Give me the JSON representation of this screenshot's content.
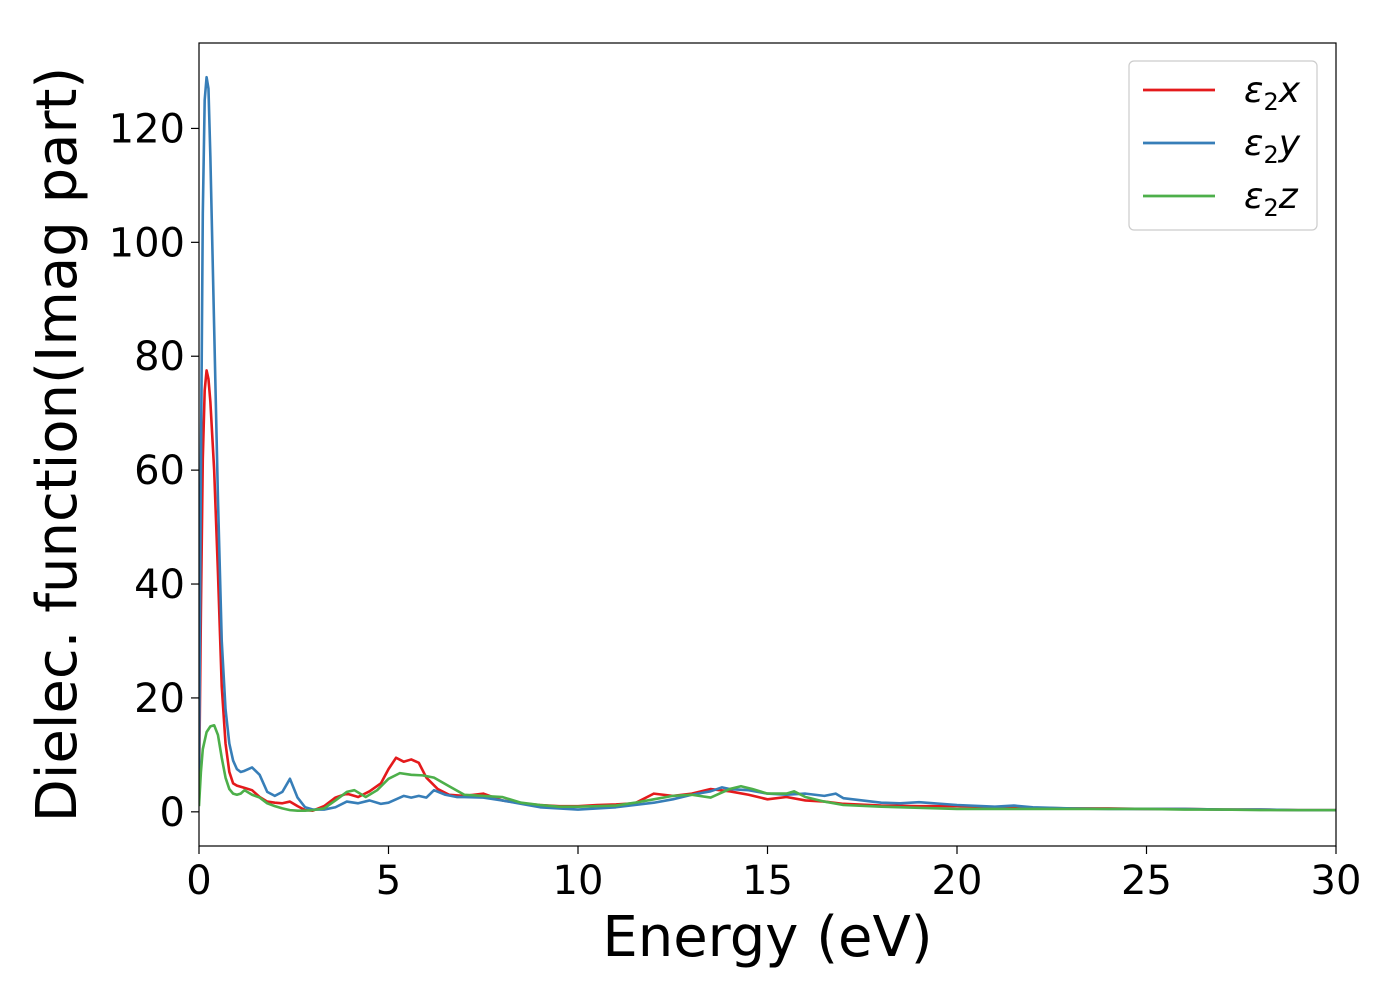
{
  "chart_data": {
    "type": "line",
    "title": "",
    "xlabel": "Energy (eV)",
    "ylabel": "Dielec. function(Imag part)",
    "xlim": [
      0,
      30
    ],
    "ylim": [
      -6,
      135
    ],
    "xticks": [
      0,
      5,
      10,
      15,
      20,
      25,
      30
    ],
    "yticks": [
      0,
      20,
      40,
      60,
      80,
      100,
      120
    ],
    "grid": false,
    "legend_position": "top-right",
    "series": [
      {
        "name": "ε2x",
        "legend_base": "ε",
        "legend_sub": "2",
        "legend_var": "x",
        "color": "#e41a1c",
        "x": [
          0,
          0.05,
          0.1,
          0.15,
          0.2,
          0.25,
          0.3,
          0.4,
          0.5,
          0.6,
          0.7,
          0.8,
          0.9,
          1.0,
          1.1,
          1.2,
          1.4,
          1.6,
          1.8,
          2.0,
          2.2,
          2.4,
          2.6,
          2.8,
          3.0,
          3.3,
          3.6,
          3.9,
          4.2,
          4.5,
          4.8,
          5.0,
          5.2,
          5.4,
          5.6,
          5.8,
          6.0,
          6.3,
          6.6,
          7.0,
          7.5,
          8.0,
          8.5,
          9.0,
          9.5,
          10.0,
          10.5,
          11.0,
          11.5,
          12.0,
          12.5,
          13.0,
          13.5,
          14.0,
          14.5,
          15.0,
          15.5,
          16.0,
          16.5,
          17.0,
          18.0,
          19.0,
          20.0,
          21.0,
          22.0,
          23.0,
          24.0,
          25.0,
          26.0,
          27.0,
          28.0,
          29.0,
          30.0
        ],
        "y": [
          3,
          35,
          62,
          74,
          77.5,
          76,
          72,
          60,
          42,
          22,
          12,
          7,
          5,
          4.6,
          4.4,
          4.2,
          3.8,
          2.6,
          1.8,
          1.6,
          1.5,
          1.8,
          1.0,
          0.3,
          0.2,
          1.0,
          2.5,
          3.2,
          2.6,
          3.6,
          5.0,
          7.5,
          9.5,
          8.8,
          9.2,
          8.6,
          6.0,
          4.0,
          3.0,
          2.8,
          3.2,
          2.0,
          1.5,
          1.2,
          1.0,
          1.0,
          1.2,
          1.3,
          1.5,
          3.2,
          2.8,
          3.2,
          4.0,
          3.6,
          3.0,
          2.2,
          2.6,
          2.0,
          1.8,
          1.4,
          1.1,
          1.0,
          1.0,
          0.8,
          0.7,
          0.6,
          0.6,
          0.5,
          0.5,
          0.4,
          0.4,
          0.3,
          0.3
        ]
      },
      {
        "name": "ε2y",
        "legend_base": "ε",
        "legend_sub": "2",
        "legend_var": "y",
        "color": "#377eb8",
        "x": [
          0,
          0.05,
          0.1,
          0.15,
          0.2,
          0.25,
          0.3,
          0.4,
          0.5,
          0.6,
          0.7,
          0.8,
          0.9,
          1.0,
          1.1,
          1.2,
          1.4,
          1.6,
          1.8,
          2.0,
          2.2,
          2.4,
          2.6,
          2.8,
          3.0,
          3.3,
          3.6,
          3.9,
          4.2,
          4.5,
          4.8,
          5.0,
          5.2,
          5.4,
          5.6,
          5.8,
          6.0,
          6.2,
          6.5,
          6.8,
          7.0,
          7.5,
          8.0,
          8.5,
          9.0,
          9.5,
          10.0,
          10.5,
          11.0,
          11.5,
          12.0,
          12.5,
          13.0,
          13.5,
          13.8,
          14.0,
          14.5,
          15.0,
          15.5,
          16.0,
          16.5,
          16.8,
          17.0,
          17.5,
          18.0,
          18.5,
          19.0,
          20.0,
          21.0,
          21.5,
          22.0,
          23.0,
          24.0,
          25.0,
          26.0,
          27.0,
          28.0,
          29.0,
          30.0
        ],
        "y": [
          5,
          60,
          105,
          125,
          129,
          127,
          115,
          85,
          55,
          30,
          18,
          12,
          9,
          7.5,
          7.0,
          7.2,
          7.8,
          6.5,
          3.5,
          2.8,
          3.5,
          5.8,
          2.5,
          0.8,
          0.4,
          0.4,
          0.8,
          1.8,
          1.5,
          2.0,
          1.4,
          1.6,
          2.2,
          2.8,
          2.5,
          2.8,
          2.5,
          3.8,
          3.0,
          2.6,
          2.6,
          2.5,
          2.0,
          1.4,
          0.8,
          0.6,
          0.4,
          0.6,
          0.8,
          1.2,
          1.6,
          2.2,
          3.0,
          3.6,
          4.3,
          4.0,
          3.8,
          3.2,
          3.0,
          3.2,
          2.8,
          3.2,
          2.4,
          2.0,
          1.6,
          1.5,
          1.7,
          1.2,
          0.9,
          1.1,
          0.8,
          0.6,
          0.5,
          0.5,
          0.5,
          0.4,
          0.4,
          0.3,
          0.3
        ]
      },
      {
        "name": "ε2z",
        "legend_base": "ε",
        "legend_sub": "2",
        "legend_var": "z",
        "color": "#4daf4a",
        "x": [
          0,
          0.05,
          0.1,
          0.2,
          0.3,
          0.4,
          0.5,
          0.6,
          0.7,
          0.8,
          0.9,
          1.0,
          1.1,
          1.2,
          1.4,
          1.6,
          1.8,
          2.0,
          2.2,
          2.4,
          2.6,
          2.8,
          3.0,
          3.3,
          3.6,
          3.9,
          4.1,
          4.4,
          4.7,
          5.0,
          5.3,
          5.6,
          5.9,
          6.2,
          6.6,
          7.0,
          7.5,
          8.0,
          8.5,
          9.0,
          9.5,
          10.0,
          10.5,
          11.0,
          11.5,
          12.0,
          12.5,
          13.0,
          13.5,
          14.0,
          14.3,
          14.6,
          15.0,
          15.5,
          15.7,
          16.0,
          16.5,
          17.0,
          18.0,
          19.0,
          20.0,
          21.0,
          22.0,
          23.0,
          24.0,
          25.0,
          26.0,
          27.0,
          28.0,
          29.0,
          30.0
        ],
        "y": [
          1,
          7,
          11,
          14,
          15,
          15.2,
          13.5,
          9.5,
          6,
          4,
          3.2,
          3.0,
          3.2,
          3.8,
          3.0,
          2.5,
          1.5,
          1.0,
          0.6,
          0.3,
          0.2,
          0.2,
          0.3,
          0.6,
          2.0,
          3.5,
          3.8,
          2.6,
          3.8,
          5.8,
          6.8,
          6.5,
          6.4,
          6.0,
          4.5,
          3.0,
          2.8,
          2.6,
          1.6,
          1.2,
          0.9,
          0.9,
          1.0,
          1.1,
          1.6,
          2.2,
          2.8,
          3.0,
          2.5,
          4.0,
          4.5,
          4.0,
          3.2,
          3.2,
          3.6,
          2.6,
          1.8,
          1.2,
          0.9,
          0.7,
          0.5,
          0.5,
          0.5,
          0.5,
          0.5,
          0.5,
          0.4,
          0.4,
          0.3,
          0.3,
          0.3
        ]
      }
    ]
  }
}
